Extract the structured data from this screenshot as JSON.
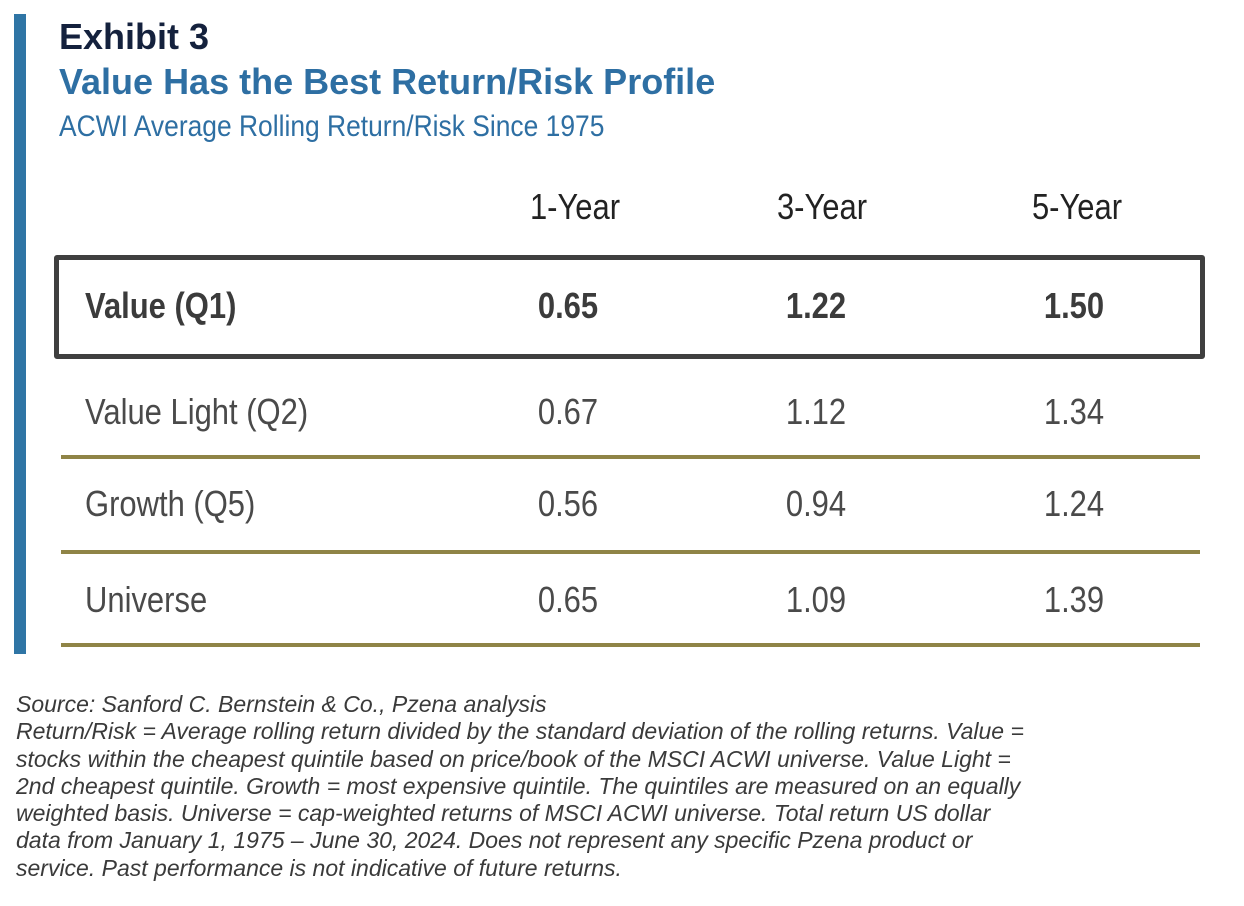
{
  "exhibit": "Exhibit 3",
  "title": "Value Has the Best Return/Risk Profile",
  "subtitle": "ACWI Average Rolling Return/Risk Since 1975",
  "table": {
    "columns": [
      "1-Year",
      "3-Year",
      "5-Year"
    ],
    "rows": [
      {
        "label": "Value (Q1)",
        "values": [
          "0.65",
          "1.22",
          "1.50"
        ],
        "highlighted": true
      },
      {
        "label": "Value Light (Q2)",
        "values": [
          "0.67",
          "1.12",
          "1.34"
        ]
      },
      {
        "label": "Growth (Q5)",
        "values": [
          "0.56",
          "0.94",
          "1.24"
        ]
      },
      {
        "label": "Universe",
        "values": [
          "0.65",
          "1.09",
          "1.39"
        ]
      }
    ]
  },
  "notes": {
    "source": "Source: Sanford C. Bernstein & Co., Pzena analysis",
    "lines": [
      "Return/Risk = Average rolling return divided by the standard deviation of the rolling returns. Value =",
      "stocks within the cheapest quintile based on price/book of the MSCI ACWI universe. Value Light =",
      "2nd cheapest quintile. Growth = most expensive quintile. The quintiles are measured on an equally",
      "weighted basis. Universe = cap-weighted returns of MSCI ACWI universe.  Total return US dollar",
      "data from January 1, 1975 – June 30, 2024.  Does not represent any specific Pzena product or",
      "service. Past performance is not indicative of future returns."
    ]
  },
  "colors": {
    "accent_bar": "#2f75a5",
    "title": "#2e6fa3",
    "exhibit": "#14213d",
    "divider": "#8f8446",
    "highlight_border": "#3f3f3f"
  }
}
